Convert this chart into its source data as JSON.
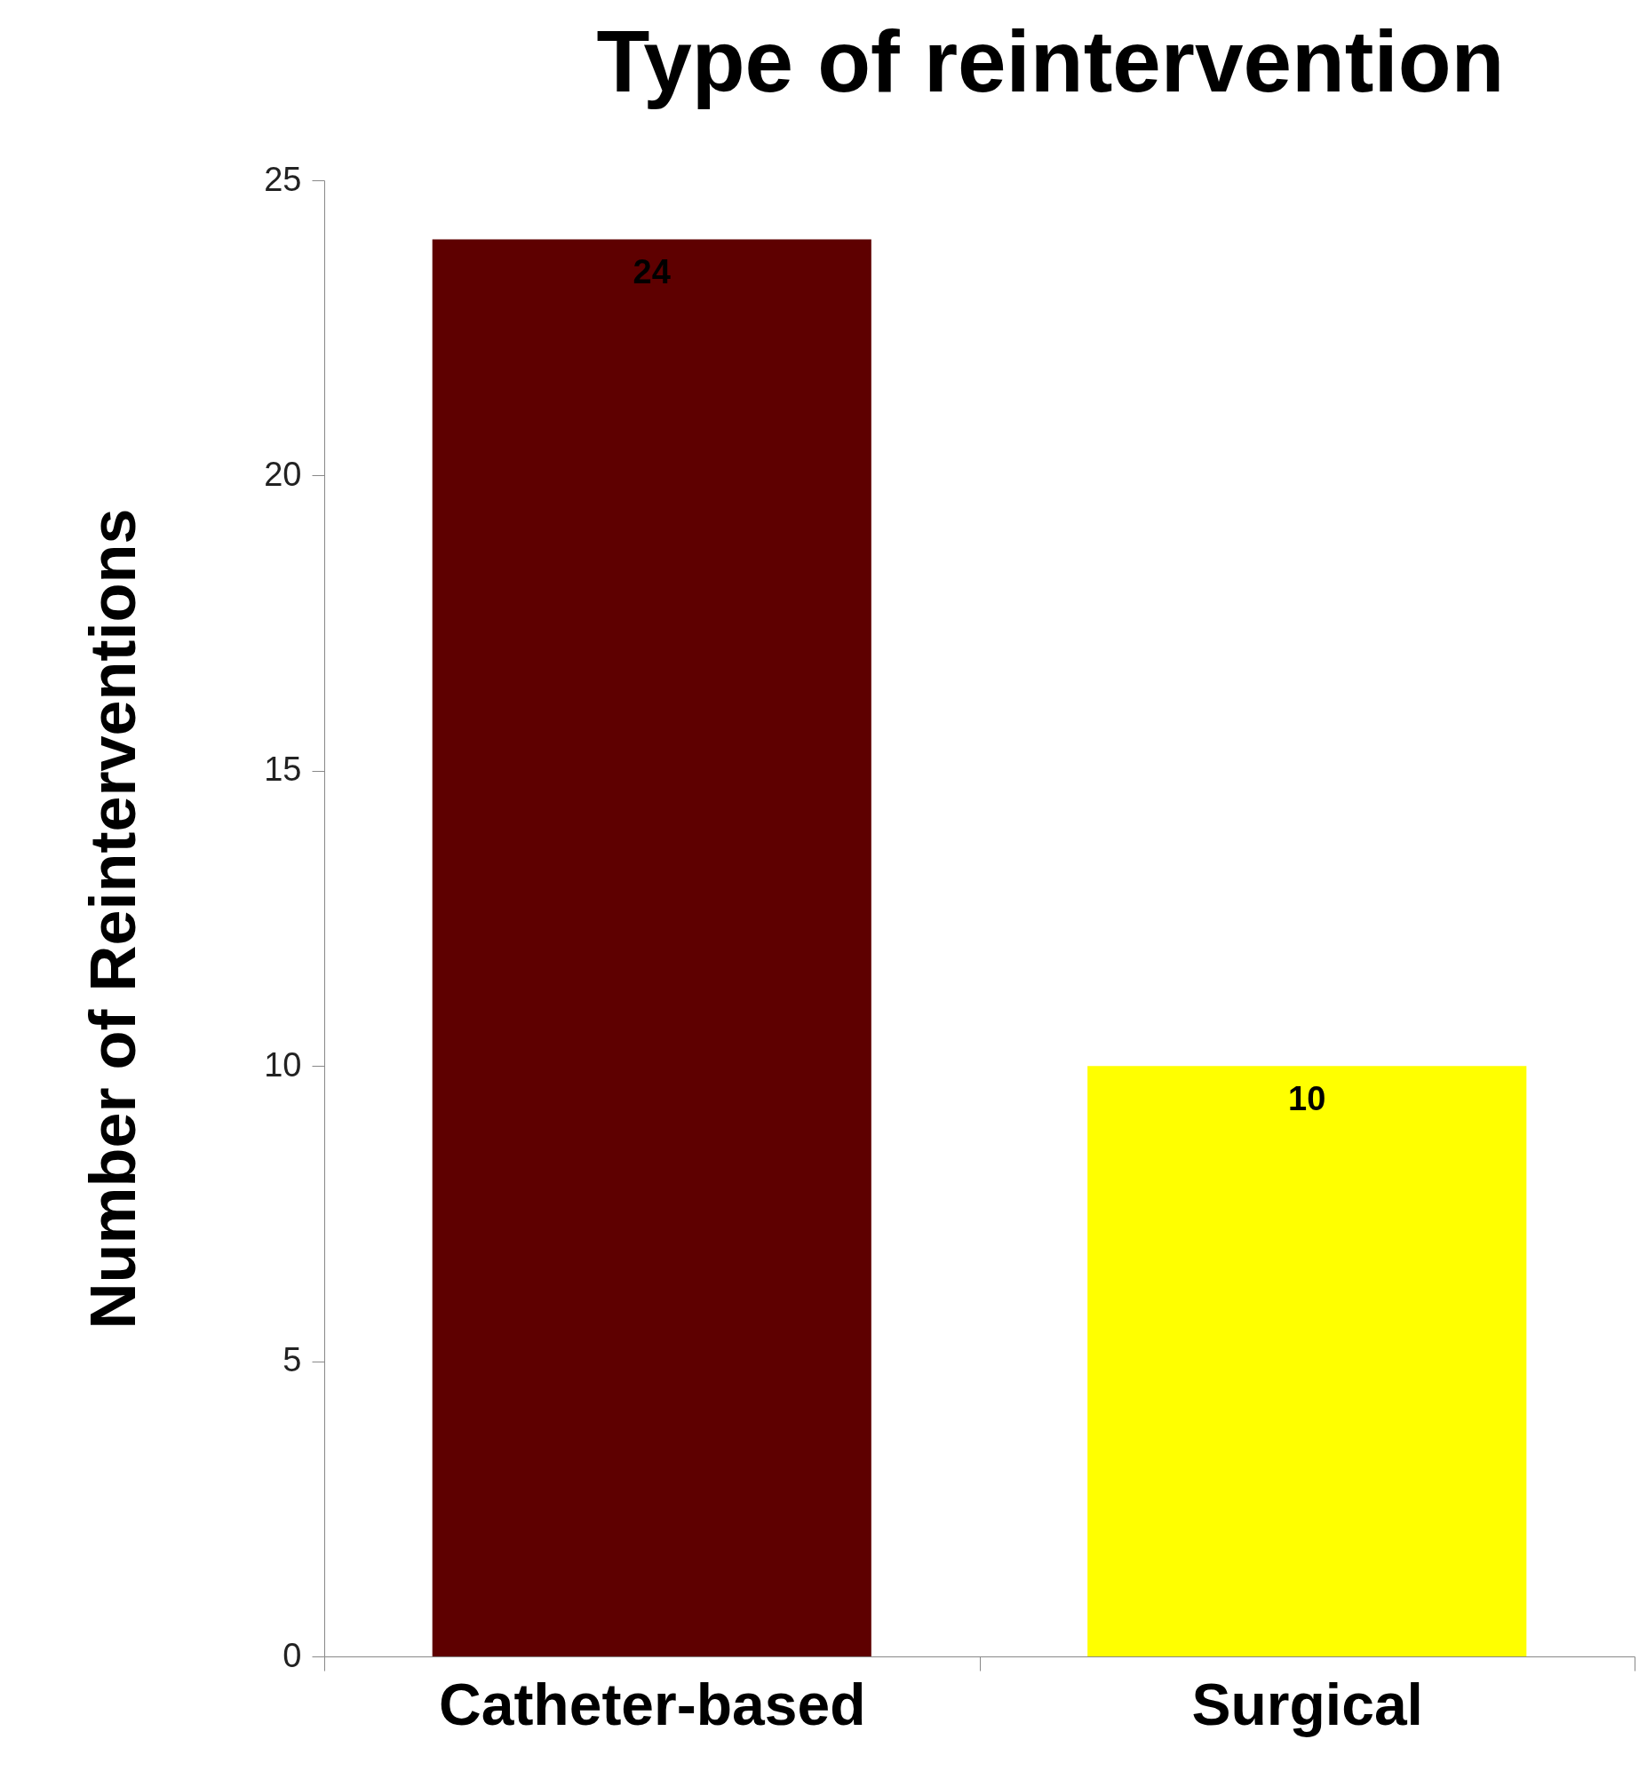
{
  "chart_data": {
    "type": "bar",
    "title": "Type of reintervention",
    "ylabel": "Number of Reinterventions",
    "categories": [
      "Catheter-based",
      "Surgical"
    ],
    "values": [
      24,
      10
    ],
    "colors": [
      "#5e0000",
      "#ffff00"
    ],
    "ylim": [
      0,
      25
    ],
    "yticks": [
      0,
      5,
      10,
      15,
      20,
      25
    ],
    "grid": false,
    "data_labels": true
  }
}
